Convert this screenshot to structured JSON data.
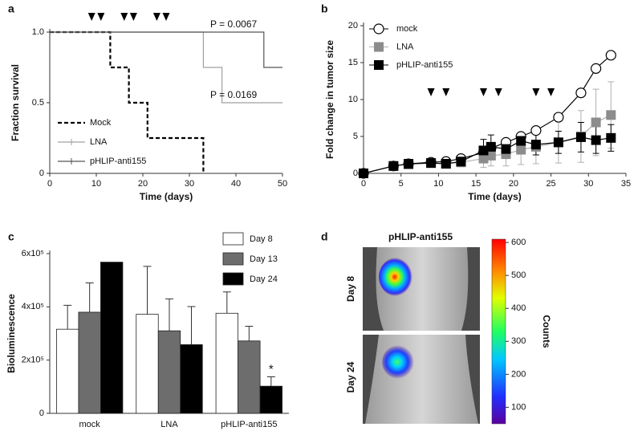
{
  "chart_data": [
    {
      "type": "step",
      "panel": "a",
      "xlabel": "Time (days)",
      "ylabel": "Fraction survival",
      "xlim": [
        0,
        50
      ],
      "xticks": [
        0,
        10,
        20,
        30,
        40,
        50
      ],
      "ylim": [
        0,
        1
      ],
      "yticks": [
        0,
        0.5,
        {
          "value": 1,
          "label": "1.0"
        }
      ],
      "arrow_x": [
        9,
        11,
        16,
        18,
        23,
        25
      ],
      "annotations": [
        "P = 0.0067",
        "P = 0.0169"
      ],
      "series": [
        {
          "name": "Mock",
          "color": "#000000",
          "line_style": "dashed",
          "x": [
            0,
            13,
            17,
            21,
            33
          ],
          "values": [
            1,
            0.75,
            0.5,
            0.25,
            0
          ]
        },
        {
          "name": "LNA",
          "color": "#a0a0a0",
          "line_style": "solid",
          "x": [
            0,
            33,
            37,
            50
          ],
          "values": [
            1,
            0.75,
            0.5,
            0.5
          ]
        },
        {
          "name": "pHLIP-anti155",
          "color": "#555555",
          "line_style": "solid",
          "x": [
            0,
            46,
            50
          ],
          "values": [
            1,
            0.75,
            0.75
          ]
        }
      ]
    },
    {
      "type": "line",
      "panel": "b",
      "xlabel": "Time (days)",
      "ylabel": "Fold change in tumor size",
      "xlim": [
        0,
        35
      ],
      "xticks": [
        0,
        5,
        10,
        15,
        20,
        25,
        30,
        35
      ],
      "ylim": [
        0,
        20
      ],
      "yticks": [
        0,
        5,
        10,
        15,
        20
      ],
      "arrow_x": [
        9,
        11,
        16,
        18,
        23,
        25
      ],
      "x": [
        0,
        4,
        6,
        9,
        11,
        13,
        16,
        17,
        19,
        21,
        23,
        26,
        29,
        31,
        33
      ],
      "series": [
        {
          "name": "mock",
          "color": "#000000",
          "marker": "circle-open",
          "values": [
            0,
            1.0,
            1.3,
            1.5,
            1.6,
            2.0,
            2.8,
            3.4,
            4.2,
            5.0,
            5.8,
            7.6,
            10.9,
            14.2,
            16.0
          ]
        },
        {
          "name": "LNA",
          "color": "#8c8c8c",
          "marker": "square",
          "values": [
            0,
            1.0,
            1.2,
            1.4,
            1.3,
            1.5,
            2.0,
            2.4,
            2.6,
            3.2,
            3.6,
            4.2,
            5.0,
            6.9,
            7.9
          ],
          "errors": [
            0,
            0.3,
            0.4,
            0.5,
            0.5,
            0.6,
            1.2,
            1.4,
            1.6,
            2.0,
            2.3,
            2.8,
            3.5,
            4.5,
            4.5
          ]
        },
        {
          "name": "pHLIP-anti155",
          "color": "#000000",
          "marker": "square",
          "values": [
            0,
            1.0,
            1.3,
            1.4,
            1.3,
            1.6,
            3.1,
            3.6,
            3.3,
            4.4,
            3.9,
            4.2,
            4.9,
            4.5,
            4.8
          ],
          "errors": [
            0,
            0.3,
            0.4,
            0.5,
            0.5,
            0.6,
            1.5,
            1.6,
            1.2,
            1.0,
            1.4,
            1.5,
            2.0,
            1.8,
            1.8
          ]
        }
      ]
    },
    {
      "type": "bar",
      "panel": "c",
      "ylabel": "Bioluminescence",
      "categories": [
        "mock",
        "LNA",
        "pHLIP-anti155"
      ],
      "ylim": [
        0,
        600000
      ],
      "yticks": [
        0,
        {
          "value": 200000,
          "label": "2x10⁵"
        },
        {
          "value": 400000,
          "label": "4x10⁵"
        },
        {
          "value": 600000,
          "label": "6x10⁵"
        }
      ],
      "annotations": [
        "*"
      ],
      "series": [
        {
          "name": "Day 8",
          "color": "#ffffff",
          "values": [
            316000,
            372000,
            376000
          ],
          "errors": [
            90000,
            180000,
            80000
          ]
        },
        {
          "name": "Day 13",
          "color": "#6d6d6d",
          "values": [
            380000,
            310000,
            272000
          ],
          "errors": [
            110000,
            120000,
            55000
          ]
        },
        {
          "name": "Day 24",
          "color": "#000000",
          "values": [
            568000,
            258000,
            102000
          ],
          "errors": [
            null,
            143000,
            35000
          ]
        }
      ]
    },
    {
      "type": "image",
      "panel": "d",
      "title": "pHLIP-anti155",
      "row_labels": [
        "Day 8",
        "Day 24"
      ],
      "ylabel": "Counts",
      "ylim": [
        50,
        610
      ],
      "yticks": [
        100,
        200,
        300,
        400,
        500,
        600
      ]
    }
  ]
}
